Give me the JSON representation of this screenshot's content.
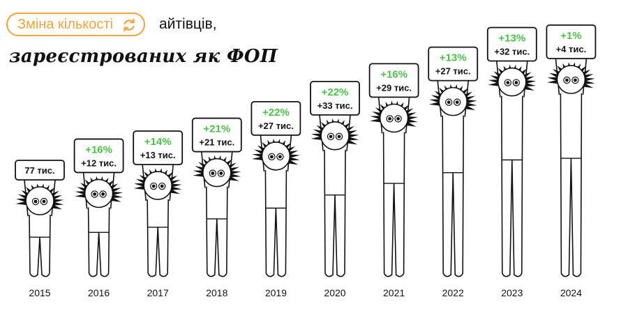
{
  "title": {
    "highlight": "Зміна кількості",
    "rest": "айтівців,",
    "line2": "зареєстрованих як ФОП",
    "highlight_color": "#F2A33A",
    "refresh_icon": "refresh-icon"
  },
  "colors": {
    "positive": "#4CC24A",
    "ink": "#111111",
    "background": "#ffffff"
  },
  "chart_data": {
    "type": "bar",
    "categories": [
      "2015",
      "2016",
      "2017",
      "2018",
      "2019",
      "2020",
      "2021",
      "2022",
      "2023",
      "2024"
    ],
    "change_labels": [
      "",
      "+16%",
      "+14%",
      "+21%",
      "+22%",
      "+22%",
      "+16%",
      "+13%",
      "+13%",
      "+1%"
    ],
    "value_labels": [
      "77 тис.",
      "+12 тис.",
      "+13 тис.",
      "+21 тис.",
      "+27 тис.",
      "+33 тис.",
      "+29 тис.",
      "+27 тис.",
      "+32 тис.",
      "+4 тис."
    ],
    "values": [
      77,
      89,
      102,
      123,
      150,
      183,
      212,
      239,
      271,
      275
    ],
    "ylim": [
      0,
      275
    ]
  }
}
